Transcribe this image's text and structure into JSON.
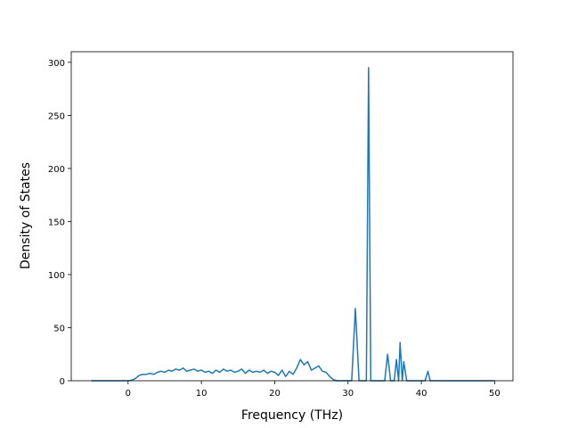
{
  "chart_data": {
    "type": "line",
    "title": "",
    "xlabel": "Frequency (THz)",
    "ylabel": "Density of States",
    "xlim": [
      -7.75,
      52.5
    ],
    "ylim": [
      0,
      310
    ],
    "xticks": [
      0,
      10,
      20,
      30,
      40,
      50
    ],
    "yticks": [
      0,
      50,
      100,
      150,
      200,
      250,
      300
    ],
    "grid": false,
    "line_color": "#1f77b4",
    "series": [
      {
        "points": [
          [
            -5,
            0
          ],
          [
            0,
            0
          ],
          [
            0.5,
            0.5
          ],
          [
            1,
            2
          ],
          [
            1.5,
            5
          ],
          [
            2,
            6
          ],
          [
            2.5,
            6
          ],
          [
            3,
            7
          ],
          [
            3.5,
            6
          ],
          [
            4,
            8
          ],
          [
            4.5,
            9
          ],
          [
            5,
            8
          ],
          [
            5.5,
            10
          ],
          [
            6,
            9
          ],
          [
            6.5,
            11
          ],
          [
            7,
            10
          ],
          [
            7.5,
            12
          ],
          [
            8,
            9
          ],
          [
            8.5,
            10
          ],
          [
            9,
            11
          ],
          [
            9.5,
            9
          ],
          [
            10,
            10
          ],
          [
            10.5,
            8
          ],
          [
            11,
            9
          ],
          [
            11.5,
            7
          ],
          [
            12,
            10
          ],
          [
            12.5,
            8
          ],
          [
            13,
            11
          ],
          [
            13.5,
            9
          ],
          [
            14,
            10
          ],
          [
            14.5,
            8
          ],
          [
            15,
            9
          ],
          [
            15.5,
            11
          ],
          [
            16,
            7
          ],
          [
            16.5,
            10
          ],
          [
            17,
            8
          ],
          [
            17.5,
            9
          ],
          [
            18,
            8
          ],
          [
            18.5,
            10
          ],
          [
            19,
            7
          ],
          [
            19.5,
            9
          ],
          [
            20,
            8
          ],
          [
            20.5,
            5
          ],
          [
            21,
            10
          ],
          [
            21.5,
            4
          ],
          [
            22,
            9
          ],
          [
            22.5,
            6
          ],
          [
            23,
            12
          ],
          [
            23.5,
            20
          ],
          [
            24,
            15
          ],
          [
            24.5,
            18
          ],
          [
            25,
            10
          ],
          [
            25.5,
            12
          ],
          [
            26,
            14
          ],
          [
            26.5,
            9
          ],
          [
            27,
            8
          ],
          [
            27.5,
            4
          ],
          [
            28,
            1
          ],
          [
            28.5,
            0
          ],
          [
            30.5,
            0
          ],
          [
            31,
            68
          ],
          [
            31.5,
            0
          ],
          [
            32.5,
            0
          ],
          [
            32.8,
            295
          ],
          [
            33.1,
            0
          ],
          [
            35,
            0
          ],
          [
            35.4,
            25
          ],
          [
            35.8,
            0
          ],
          [
            36.3,
            0
          ],
          [
            36.6,
            20
          ],
          [
            36.9,
            0
          ],
          [
            37.1,
            36
          ],
          [
            37.4,
            0
          ],
          [
            37.6,
            18
          ],
          [
            38,
            0
          ],
          [
            40.5,
            0
          ],
          [
            40.9,
            9
          ],
          [
            41.2,
            0
          ],
          [
            50,
            0
          ]
        ]
      }
    ]
  }
}
